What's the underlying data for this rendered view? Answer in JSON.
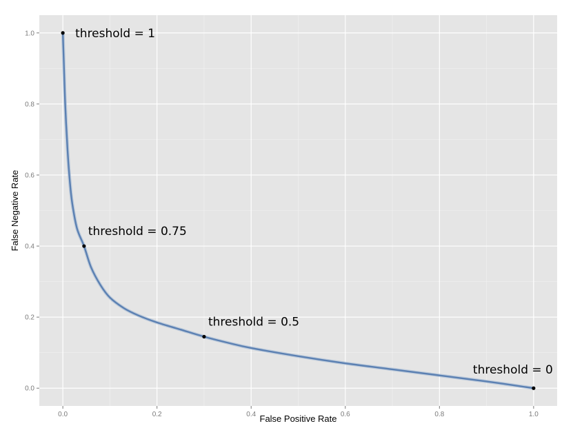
{
  "chart_data": {
    "type": "line",
    "title": "",
    "xlabel": "False Positive Rate",
    "ylabel": "False Negative Rate",
    "xlim": [
      -0.05,
      1.05
    ],
    "ylim": [
      -0.05,
      1.05
    ],
    "x_ticks": [
      0.0,
      0.2,
      0.4,
      0.6,
      0.8,
      1.0
    ],
    "x_tick_labels": [
      "0.0",
      "0.2",
      "0.4",
      "0.6",
      "0.8",
      "1.0"
    ],
    "y_ticks": [
      0.0,
      0.2,
      0.4,
      0.6,
      0.8,
      1.0
    ],
    "y_tick_labels": [
      "0.0",
      "0.2",
      "0.4",
      "0.6",
      "0.8",
      "1.0"
    ],
    "grid": true,
    "series": [
      {
        "color": "#5b80b2",
        "x": [
          0.0,
          0.002,
          0.005,
          0.01,
          0.015,
          0.02,
          0.03,
          0.045,
          0.06,
          0.08,
          0.1,
          0.13,
          0.16,
          0.2,
          0.25,
          0.3,
          0.35,
          0.4,
          0.5,
          0.6,
          0.7,
          0.8,
          0.9,
          1.0
        ],
        "y": [
          1.0,
          0.92,
          0.8,
          0.67,
          0.58,
          0.52,
          0.45,
          0.4,
          0.34,
          0.29,
          0.255,
          0.225,
          0.205,
          0.185,
          0.165,
          0.145,
          0.128,
          0.113,
          0.09,
          0.07,
          0.053,
          0.036,
          0.019,
          0.0
        ]
      }
    ],
    "points": [
      {
        "x": 0.0,
        "y": 1.0,
        "label": "threshold = 1"
      },
      {
        "x": 0.045,
        "y": 0.4,
        "label": "threshold = 0.75"
      },
      {
        "x": 0.3,
        "y": 0.145,
        "label": "threshold = 0.5"
      },
      {
        "x": 1.0,
        "y": 0.0,
        "label": "threshold = 0"
      }
    ]
  }
}
